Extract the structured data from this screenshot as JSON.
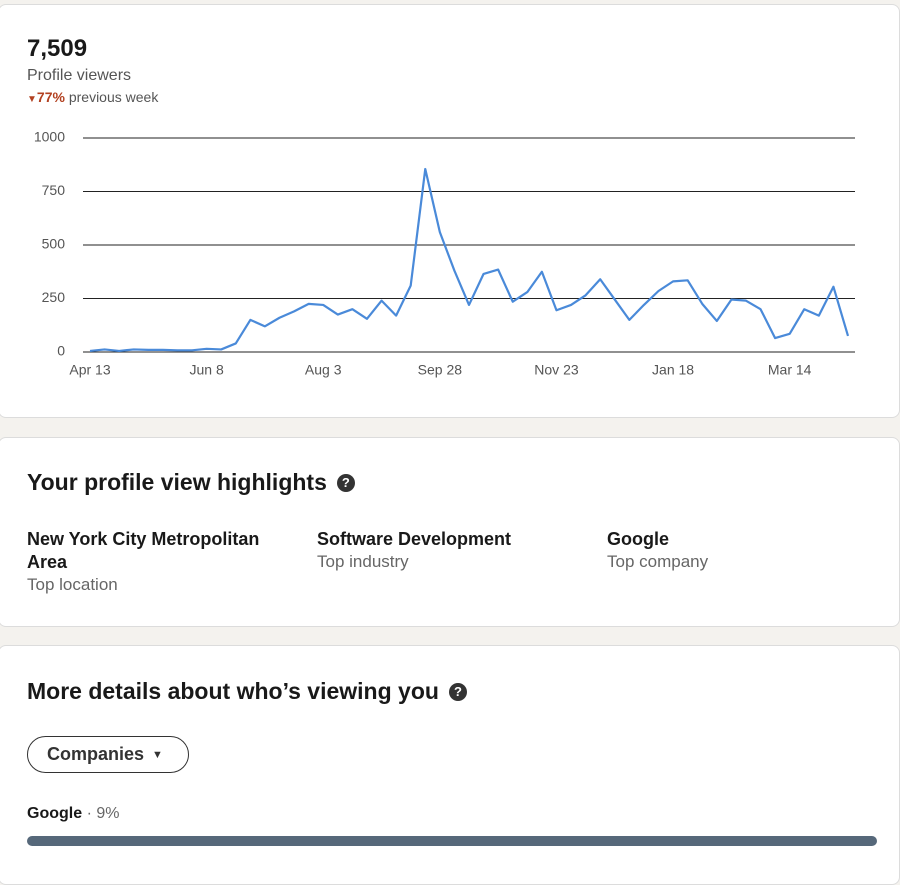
{
  "summary": {
    "count": "7,509",
    "label": "Profile viewers",
    "change": "77%",
    "change_suffix": "previous week"
  },
  "chart_data": {
    "type": "line",
    "categories": [
      "Apr 13",
      null,
      null,
      null,
      null,
      null,
      null,
      null,
      "Jun 8",
      null,
      null,
      null,
      null,
      null,
      null,
      null,
      "Aug 3",
      null,
      null,
      null,
      null,
      null,
      null,
      null,
      "Sep 28",
      null,
      null,
      null,
      null,
      null,
      null,
      null,
      "Nov 23",
      null,
      null,
      null,
      null,
      null,
      null,
      null,
      "Jan 18",
      null,
      null,
      null,
      null,
      null,
      null,
      null,
      "Mar 14",
      null,
      null,
      null,
      null
    ],
    "series": [
      {
        "name": "Profile viewers",
        "color": "#4a8ad9",
        "values": [
          5,
          12,
          5,
          12,
          10,
          10,
          8,
          8,
          15,
          12,
          40,
          150,
          120,
          160,
          190,
          225,
          220,
          175,
          200,
          155,
          240,
          170,
          310,
          855,
          560,
          380,
          220,
          365,
          385,
          235,
          280,
          375,
          195,
          220,
          265,
          340,
          245,
          150,
          220,
          285,
          330,
          335,
          225,
          145,
          245,
          240,
          200,
          65,
          85,
          200,
          170,
          305,
          75
        ]
      }
    ],
    "ylim": [
      0,
      1000
    ],
    "yticks": [
      0,
      250,
      500,
      750,
      1000
    ],
    "grid": true
  },
  "highlights": {
    "title": "Your profile view highlights",
    "items": [
      {
        "value": "New York City Metropolitan Area",
        "label": "Top location"
      },
      {
        "value": "Software Development",
        "label": "Top industry"
      },
      {
        "value": "Google",
        "label": "Top company"
      }
    ]
  },
  "details": {
    "title": "More details about who’s viewing you",
    "filter": "Companies",
    "rows": [
      {
        "name": "Google",
        "percent": "· 9%"
      }
    ]
  }
}
